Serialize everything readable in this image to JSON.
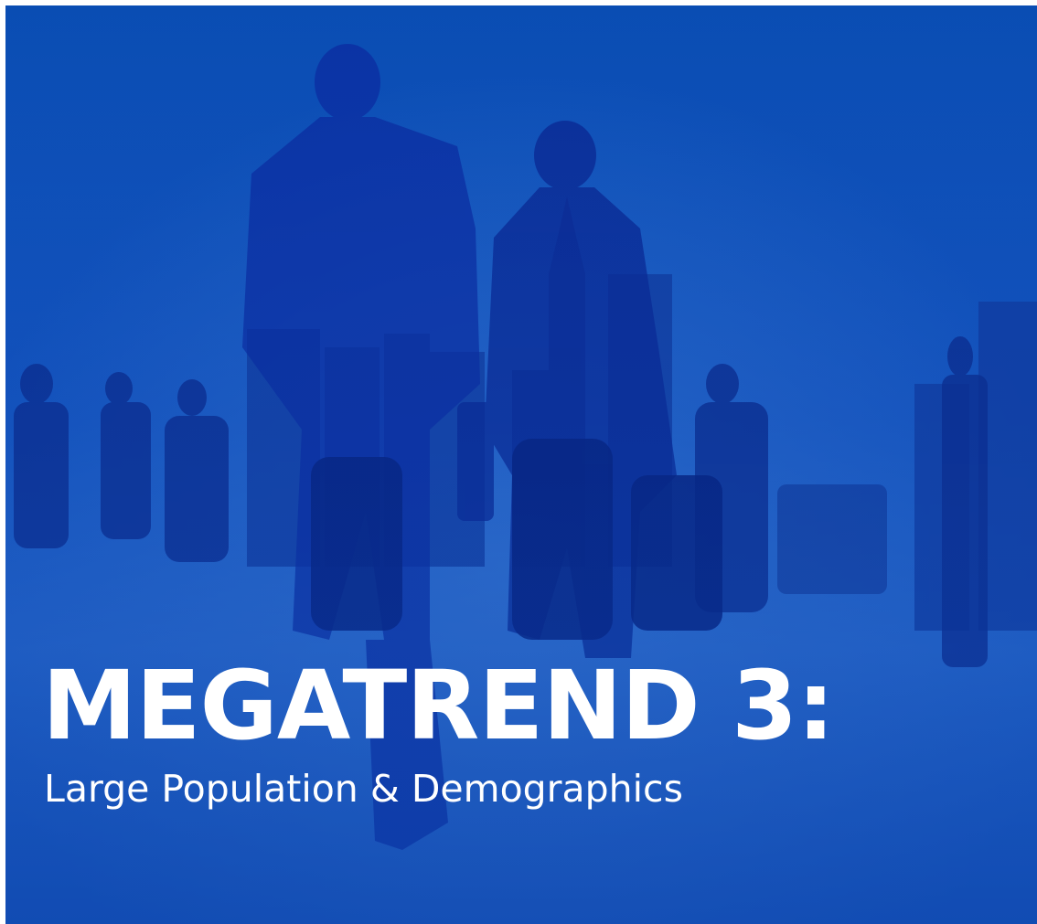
{
  "title": "MEGATREND 3:",
  "subtitle": "Large Population & Demographics"
}
